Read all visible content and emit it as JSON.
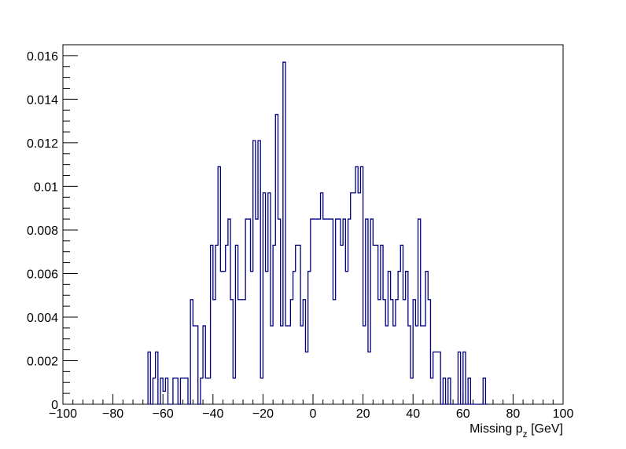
{
  "chart_data": {
    "type": "histogram",
    "title": "",
    "xlabel": "Missing p",
    "xlabel_subscript": "z",
    "xlabel_unit": " [GeV]",
    "ylabel": "",
    "xlim": [
      -100,
      100
    ],
    "ylim": [
      0,
      0.0165
    ],
    "bin_width": 2,
    "x_ticks": [
      -100,
      -80,
      -60,
      -40,
      -20,
      0,
      20,
      40,
      60,
      80,
      100
    ],
    "x_tick_labels": [
      "−100",
      "−80",
      "−60",
      "−40",
      "−20",
      "0",
      "20",
      "40",
      "60",
      "80",
      "100"
    ],
    "y_ticks": [
      0,
      0.002,
      0.004,
      0.006,
      0.008,
      0.01,
      0.012,
      0.014,
      0.016
    ],
    "y_tick_labels": [
      "0",
      "0.002",
      "0.004",
      "0.006",
      "0.008",
      "0.01",
      "0.012",
      "0.014",
      "0.016"
    ],
    "grid": false,
    "legend": "none",
    "line_color": "#000080",
    "bins": [
      [
        -66,
        -65,
        0.0024
      ],
      [
        -65,
        -64,
        0.0
      ],
      [
        -64,
        -63,
        0.0012
      ],
      [
        -63,
        -62,
        0.0024
      ],
      [
        -62,
        -61,
        0.0
      ],
      [
        -61,
        -60,
        0.0012
      ],
      [
        -60,
        -59,
        0.0006
      ],
      [
        -59,
        -58,
        0.0012
      ],
      [
        -58,
        -56,
        0.0
      ],
      [
        -56,
        -54,
        0.0012
      ],
      [
        -54,
        -53,
        0.0
      ],
      [
        -53,
        -50,
        0.0012
      ],
      [
        -50,
        -49,
        0.0
      ],
      [
        -49,
        -48,
        0.0048
      ],
      [
        -48,
        -46,
        0.0036
      ],
      [
        -46,
        -45,
        0.0
      ],
      [
        -45,
        -44,
        0.0012
      ],
      [
        -44,
        -43,
        0.0036
      ],
      [
        -43,
        -41,
        0.0012
      ],
      [
        -41,
        -40,
        0.0073
      ],
      [
        -40,
        -39,
        0.0048
      ],
      [
        -39,
        -38,
        0.0073
      ],
      [
        -38,
        -37,
        0.0109
      ],
      [
        -37,
        -35,
        0.0061
      ],
      [
        -35,
        -34,
        0.0073
      ],
      [
        -34,
        -33,
        0.0085
      ],
      [
        -33,
        -32,
        0.0048
      ],
      [
        -32,
        -31,
        0.0012
      ],
      [
        -31,
        -30,
        0.0073
      ],
      [
        -30,
        -27,
        0.0048
      ],
      [
        -27,
        -25,
        0.0085
      ],
      [
        -25,
        -24,
        0.0061
      ],
      [
        -24,
        -23,
        0.0121
      ],
      [
        -23,
        -22,
        0.0085
      ],
      [
        -22,
        -21,
        0.0121
      ],
      [
        -21,
        -20,
        0.0012
      ],
      [
        -20,
        -19,
        0.0097
      ],
      [
        -19,
        -18,
        0.0061
      ],
      [
        -18,
        -17,
        0.0097
      ],
      [
        -17,
        -16,
        0.0036
      ],
      [
        -16,
        -15,
        0.0073
      ],
      [
        -15,
        -14,
        0.0133
      ],
      [
        -14,
        -13,
        0.0085
      ],
      [
        -13,
        -12,
        0.0036
      ],
      [
        -12,
        -11,
        0.0157
      ],
      [
        -11,
        -9,
        0.0036
      ],
      [
        -9,
        -8,
        0.0048
      ],
      [
        -8,
        -7,
        0.0061
      ],
      [
        -7,
        -5,
        0.0073
      ],
      [
        -5,
        -4,
        0.0036
      ],
      [
        -4,
        -3,
        0.0048
      ],
      [
        -3,
        -2,
        0.0024
      ],
      [
        -2,
        -1,
        0.0061
      ],
      [
        -1,
        3,
        0.0085
      ],
      [
        3,
        4,
        0.0097
      ],
      [
        4,
        5,
        0.0085
      ],
      [
        5,
        8,
        0.0085
      ],
      [
        8,
        9,
        0.0048
      ],
      [
        9,
        11,
        0.0085
      ],
      [
        11,
        12,
        0.0073
      ],
      [
        12,
        13,
        0.0085
      ],
      [
        13,
        14,
        0.0061
      ],
      [
        14,
        15,
        0.0085
      ],
      [
        15,
        16,
        0.0097
      ],
      [
        16,
        17,
        0.0097
      ],
      [
        17,
        18,
        0.0109
      ],
      [
        18,
        19,
        0.0097
      ],
      [
        19,
        20,
        0.0109
      ],
      [
        20,
        21,
        0.0036
      ],
      [
        21,
        22,
        0.0085
      ],
      [
        22,
        23,
        0.0024
      ],
      [
        23,
        24,
        0.0085
      ],
      [
        24,
        26,
        0.0073
      ],
      [
        26,
        27,
        0.0048
      ],
      [
        27,
        28,
        0.0073
      ],
      [
        28,
        29,
        0.0048
      ],
      [
        29,
        30,
        0.0036
      ],
      [
        30,
        31,
        0.0061
      ],
      [
        31,
        32,
        0.0048
      ],
      [
        32,
        33,
        0.0036
      ],
      [
        33,
        34,
        0.0048
      ],
      [
        34,
        35,
        0.0061
      ],
      [
        35,
        36,
        0.0073
      ],
      [
        36,
        37,
        0.0048
      ],
      [
        37,
        38,
        0.0061
      ],
      [
        38,
        39,
        0.0036
      ],
      [
        39,
        40,
        0.0012
      ],
      [
        40,
        41,
        0.0048
      ],
      [
        41,
        42,
        0.0036
      ],
      [
        42,
        43,
        0.0085
      ],
      [
        43,
        45,
        0.0036
      ],
      [
        45,
        46,
        0.0061
      ],
      [
        46,
        47,
        0.0048
      ],
      [
        47,
        48,
        0.0012
      ],
      [
        48,
        51,
        0.0024
      ],
      [
        51,
        52,
        0.0
      ],
      [
        52,
        53,
        0.0012
      ],
      [
        53,
        54,
        0.0
      ],
      [
        54,
        55,
        0.0012
      ],
      [
        55,
        58,
        0.0
      ],
      [
        58,
        59,
        0.0024
      ],
      [
        59,
        60,
        0.0
      ],
      [
        60,
        61,
        0.0024
      ],
      [
        61,
        62,
        0.0
      ],
      [
        62,
        63,
        0.0012
      ],
      [
        63,
        68,
        0.0
      ],
      [
        68,
        69,
        0.0012
      ],
      [
        69,
        70,
        0.0
      ]
    ]
  }
}
